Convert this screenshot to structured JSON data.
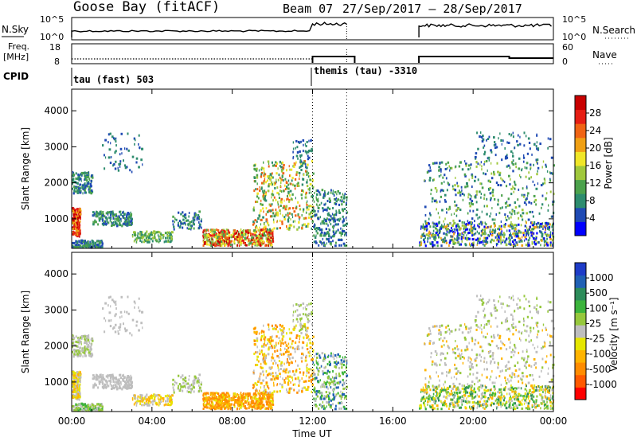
{
  "header": {
    "station": "Goose Bay (fitACF)",
    "beam": "Beam 07",
    "date_range": "27/Sep/2017 – 28/Sep/2017"
  },
  "param_panel": {
    "left_label_nsky": "N.Sky",
    "left_label_freq_line1": "Freq.",
    "left_label_freq_line2": "[MHz]",
    "left_label_cpid": "CPID",
    "right_label_nsearch": "N.Search",
    "right_label_nave": "Nave",
    "noise_ticks_left": [
      "10^5",
      "10^0"
    ],
    "noise_ticks_right": [
      "10^5",
      "10^0"
    ],
    "freq_ticks_left": [
      "18",
      "8"
    ],
    "nave_ticks_right": [
      "60",
      "0"
    ],
    "cpid_1": "tau (fast) 503",
    "cpid_2": "themis (tau) -3310"
  },
  "colors": {
    "power_scale": [
      "#0000ff",
      "#1f4ab4",
      "#2d8c6e",
      "#4ca24c",
      "#a0c83c",
      "#f0e628",
      "#f0a014",
      "#f06414",
      "#e61e14",
      "#c80000"
    ],
    "velocity_scale": [
      "#ff0000",
      "#ff5a00",
      "#ff8c00",
      "#ffb400",
      "#e6e600",
      "#bebebe",
      "#96c83c",
      "#3cb43c",
      "#2d8c5a",
      "#2060b4",
      "#1e3cc8"
    ],
    "ground_scatter": "#bebebe"
  },
  "chart_data": [
    {
      "type": "heatmap",
      "name": "power",
      "title": "",
      "xlabel": "Time UT",
      "ylabel": "Slant Range [km]",
      "colorbar_label": "Power [dB]",
      "colorbar_ticks": [
        "4",
        "8",
        "12",
        "16",
        "20",
        "24",
        "28"
      ],
      "x_ticks": [
        "00:00",
        "04:00",
        "08:00",
        "12:00",
        "16:00",
        "20:00",
        "00:00"
      ],
      "y_ticks": [
        "1000",
        "2000",
        "3000",
        "4000"
      ],
      "xlim_hours": [
        0,
        24
      ],
      "ylim_km": [
        180,
        4600
      ],
      "data_gap_hours": [
        13.7,
        17.3
      ]
    },
    {
      "type": "heatmap",
      "name": "velocity",
      "title": "",
      "xlabel": "Time UT",
      "ylabel": "Slant Range [km]",
      "colorbar_label": "Velocity [m s⁻¹]",
      "colorbar_ticks": [
        "1000",
        "500",
        "100",
        "25",
        "-25",
        "-100",
        "-500",
        "-1000"
      ],
      "x_ticks": [
        "00:00",
        "04:00",
        "08:00",
        "12:00",
        "16:00",
        "20:00",
        "00:00"
      ],
      "y_ticks": [
        "1000",
        "2000",
        "3000",
        "4000"
      ],
      "xlim_hours": [
        0,
        24
      ],
      "ylim_km": [
        180,
        4600
      ],
      "data_gap_hours": [
        13.7,
        17.3
      ]
    }
  ],
  "xlabel_bottom": "Time UT"
}
